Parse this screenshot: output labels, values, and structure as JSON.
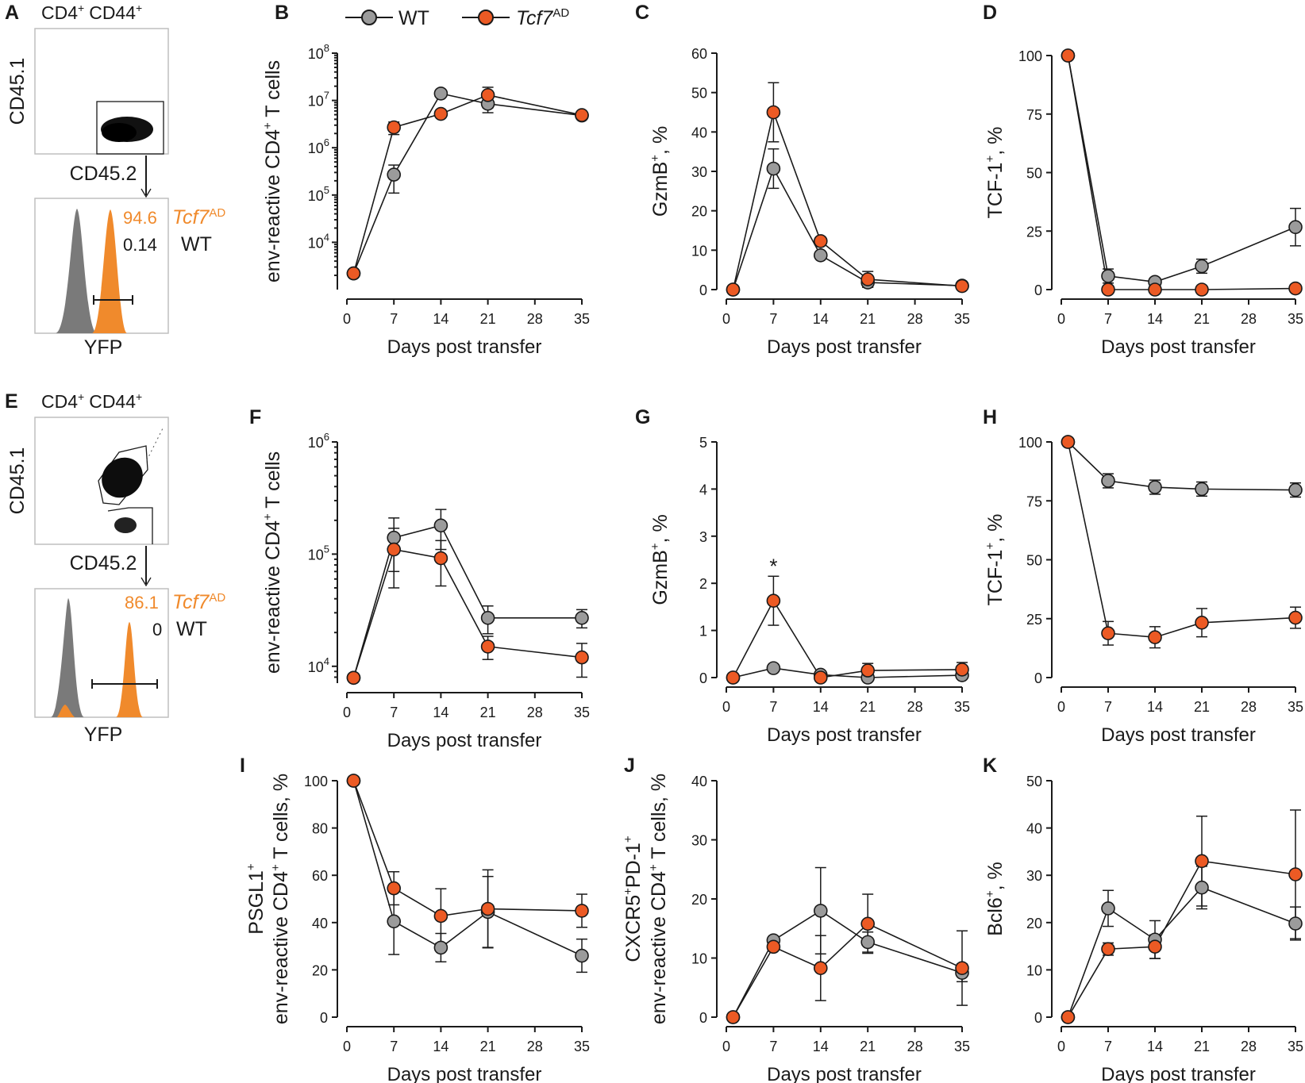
{
  "colors": {
    "wt": "#9b9b9b",
    "ad": "#ec5a24",
    "adText": "#f08a2c",
    "hist_wt": "#7a7a7a"
  },
  "legend": {
    "wt": "WT",
    "ad_main": "Tcf7",
    "ad_sup": "AD"
  },
  "x_label": "Days post transfer",
  "flow_panels": [
    {
      "panel": "A",
      "gate_title_1": "CD4",
      "gate_title_sup1": "+",
      "gate_title_2": "CD44",
      "gate_title_sup2": "+",
      "y_label": "CD45.1",
      "x_label": "CD45.2",
      "hist_label": "YFP",
      "ad_value": "94.6",
      "wt_value": "0.14",
      "ad_name": "Tcf7",
      "ad_sup": "AD",
      "wt_name": "WT"
    },
    {
      "panel": "E",
      "gate_title_1": "CD4",
      "gate_title_sup1": "+",
      "gate_title_2": "CD44",
      "gate_title_sup2": "+",
      "y_label": "CD45.1",
      "x_label": "CD45.2",
      "hist_label": "YFP",
      "ad_value": "86.1",
      "wt_value": "0",
      "ad_name": "Tcf7",
      "ad_sup": "AD",
      "wt_name": "WT"
    }
  ],
  "chart_data": [
    {
      "panel": "B",
      "type": "line",
      "scale": "log",
      "ylim": [
        3,
        8
      ],
      "yticks": [
        4,
        5,
        6,
        7,
        8
      ],
      "ylabel": [
        {
          "t": "env-reactive CD4"
        },
        {
          "t": "+",
          "sup": true
        },
        {
          "t": " T cells"
        }
      ],
      "x": [
        1,
        7,
        14,
        21,
        35
      ],
      "xticks": [
        0,
        7,
        14,
        21,
        28,
        35
      ],
      "xlim": [
        0,
        35
      ],
      "series": [
        {
          "name": "WT",
          "values": [
            2200,
            270000,
            14000000,
            8500000,
            4800000
          ],
          "err": [
            0,
            160000,
            0,
            3000000,
            500000
          ]
        },
        {
          "name": "Tcf7AD",
          "values": [
            2200,
            2700000,
            5200000,
            13000000,
            4900000
          ],
          "err": [
            0,
            800000,
            0,
            6000000,
            0
          ]
        }
      ]
    },
    {
      "panel": "C",
      "type": "line",
      "ylim": [
        0,
        60
      ],
      "yticks": [
        0,
        10,
        20,
        30,
        40,
        50,
        60
      ],
      "ylabel": [
        {
          "t": "GzmB"
        },
        {
          "t": "+",
          "sup": true
        },
        {
          "t": ", %"
        }
      ],
      "x": [
        1,
        7,
        14,
        21,
        35
      ],
      "xticks": [
        0,
        7,
        14,
        21,
        28,
        35
      ],
      "xlim": [
        0,
        35
      ],
      "series": [
        {
          "name": "WT",
          "values": [
            0,
            30.7,
            8.7,
            1.8,
            1.0
          ],
          "err": [
            0,
            5,
            0,
            1.2,
            0
          ]
        },
        {
          "name": "Tcf7AD",
          "values": [
            0,
            45,
            12.3,
            2.6,
            0.9
          ],
          "err": [
            0,
            7.5,
            0,
            2,
            0
          ]
        }
      ]
    },
    {
      "panel": "D",
      "type": "line",
      "ylim": [
        0,
        100
      ],
      "yticks": [
        0,
        25,
        50,
        75,
        100
      ],
      "ylabel": [
        {
          "t": "TCF-1"
        },
        {
          "t": "+",
          "sup": true
        },
        {
          "t": ", %"
        }
      ],
      "x": [
        1,
        7,
        14,
        21,
        35
      ],
      "xticks": [
        0,
        7,
        14,
        21,
        28,
        35
      ],
      "xlim": [
        0,
        35
      ],
      "series": [
        {
          "name": "WT",
          "values": [
            100,
            5.8,
            3.3,
            10.0,
            26.7
          ],
          "err": [
            0,
            3,
            0,
            3,
            8
          ]
        },
        {
          "name": "Tcf7AD",
          "values": [
            100,
            0,
            0,
            0,
            0.5
          ],
          "err": [
            0,
            0,
            0,
            0,
            0
          ]
        }
      ]
    },
    {
      "panel": "F",
      "type": "line",
      "scale": "log",
      "ylim": [
        3.85,
        6
      ],
      "yticks": [
        4,
        5,
        6
      ],
      "ylabel": [
        {
          "t": "env-reactive CD4"
        },
        {
          "t": "+",
          "sup": true
        },
        {
          "t": " T cells"
        }
      ],
      "x": [
        1,
        7,
        14,
        21,
        35
      ],
      "xticks": [
        0,
        7,
        14,
        21,
        28,
        35
      ],
      "xlim": [
        0,
        35
      ],
      "series": [
        {
          "name": "WT",
          "values": [
            7900,
            140000,
            180000,
            27000,
            27000
          ],
          "err": [
            0,
            70000,
            70000,
            7500,
            5000
          ]
        },
        {
          "name": "Tcf7AD",
          "values": [
            7900,
            110000,
            92000,
            15000,
            12000
          ],
          "err": [
            0,
            60000,
            40000,
            3500,
            4000
          ]
        }
      ]
    },
    {
      "panel": "G",
      "type": "line",
      "ylim": [
        0,
        5
      ],
      "yticks": [
        0,
        1,
        2,
        3,
        4,
        5
      ],
      "ylabel": [
        {
          "t": "GzmB"
        },
        {
          "t": "+",
          "sup": true
        },
        {
          "t": ", %"
        }
      ],
      "annotation": {
        "text": "*",
        "x": 7,
        "y": 2.35
      },
      "x": [
        1,
        7,
        14,
        21,
        35
      ],
      "xticks": [
        0,
        7,
        14,
        21,
        28,
        35
      ],
      "xlim": [
        0,
        35
      ],
      "series": [
        {
          "name": "WT",
          "values": [
            0,
            0.2,
            0.06,
            0,
            0.05
          ],
          "err": [
            0,
            0,
            0,
            0,
            0
          ]
        },
        {
          "name": "Tcf7AD",
          "values": [
            0,
            1.63,
            0,
            0.15,
            0.17
          ],
          "err": [
            0,
            0.52,
            0,
            0.15,
            0.15
          ]
        }
      ]
    },
    {
      "panel": "H",
      "type": "line",
      "ylim": [
        0,
        100
      ],
      "yticks": [
        0,
        25,
        50,
        75,
        100
      ],
      "ylabel": [
        {
          "t": "TCF-1"
        },
        {
          "t": "+",
          "sup": true
        },
        {
          "t": ", %"
        }
      ],
      "x": [
        1,
        7,
        14,
        21,
        35
      ],
      "xticks": [
        0,
        7,
        14,
        21,
        28,
        35
      ],
      "xlim": [
        0,
        35
      ],
      "series": [
        {
          "name": "WT",
          "values": [
            100,
            83.5,
            80.8,
            80.0,
            79.6
          ],
          "err": [
            0,
            3,
            3,
            3,
            3
          ]
        },
        {
          "name": "Tcf7AD",
          "values": [
            100,
            18.8,
            17.1,
            23.3,
            25.4
          ],
          "err": [
            0,
            5,
            4.5,
            6,
            4.5
          ]
        }
      ]
    },
    {
      "panel": "I",
      "type": "line",
      "ylim": [
        0,
        100
      ],
      "yticks": [
        0,
        20,
        40,
        60,
        80,
        100
      ],
      "ylabel": [
        {
          "t": "PSGL1"
        },
        {
          "t": "+",
          "sup": true
        }
      ],
      "ylabel2": [
        {
          "t": "env-reactive CD4"
        },
        {
          "t": "+",
          "sup": true
        },
        {
          "t": " T cells, %"
        }
      ],
      "x": [
        1,
        7,
        14,
        21,
        35
      ],
      "xticks": [
        0,
        7,
        14,
        21,
        28,
        35
      ],
      "xlim": [
        0,
        35
      ],
      "series": [
        {
          "name": "WT",
          "values": [
            100,
            40.5,
            29.4,
            44.5,
            26.0
          ],
          "err": [
            0,
            14,
            6,
            15,
            7
          ]
        },
        {
          "name": "Tcf7AD",
          "values": [
            100,
            54.5,
            42.8,
            45.8,
            45.0
          ],
          "err": [
            0,
            7,
            11.5,
            16.5,
            7
          ]
        }
      ]
    },
    {
      "panel": "J",
      "type": "line",
      "ylim": [
        0,
        40
      ],
      "yticks": [
        0,
        10,
        20,
        30,
        40
      ],
      "ylabel": [
        {
          "t": "CXCR5"
        },
        {
          "t": "+",
          "sup": true
        },
        {
          "t": "PD-1"
        },
        {
          "t": "+",
          "sup": true
        }
      ],
      "ylabel2": [
        {
          "t": "env-reactive CD4"
        },
        {
          "t": "+",
          "sup": true
        },
        {
          "t": " T cells, %"
        }
      ],
      "x": [
        1,
        7,
        14,
        21,
        35
      ],
      "xticks": [
        0,
        7,
        14,
        21,
        28,
        35
      ],
      "xlim": [
        0,
        35
      ],
      "series": [
        {
          "name": "WT",
          "values": [
            0,
            13.0,
            18.0,
            12.7,
            7.5
          ],
          "err": [
            0,
            0,
            7.3,
            1.7,
            1.5
          ]
        },
        {
          "name": "Tcf7AD",
          "values": [
            0,
            11.9,
            8.3,
            15.8,
            8.3
          ],
          "err": [
            0,
            0,
            5.5,
            5,
            6.3
          ]
        }
      ]
    },
    {
      "panel": "K",
      "type": "line",
      "ylim": [
        0,
        50
      ],
      "yticks": [
        0,
        10,
        20,
        30,
        40,
        50
      ],
      "ylabel": [
        {
          "t": "Bcl6"
        },
        {
          "t": "+",
          "sup": true
        },
        {
          "t": ", %"
        }
      ],
      "x": [
        1,
        7,
        14,
        21,
        35
      ],
      "xticks": [
        0,
        7,
        14,
        21,
        28,
        35
      ],
      "xlim": [
        0,
        35
      ],
      "series": [
        {
          "name": "WT",
          "values": [
            0,
            23.0,
            16.4,
            27.4,
            19.8
          ],
          "err": [
            0,
            3.8,
            4,
            4.5,
            3.5
          ]
        },
        {
          "name": "Tcf7AD",
          "values": [
            0,
            14.4,
            14.9,
            33.0,
            30.2
          ],
          "err": [
            0,
            1.3,
            2.5,
            9.5,
            13.6
          ]
        }
      ]
    }
  ]
}
